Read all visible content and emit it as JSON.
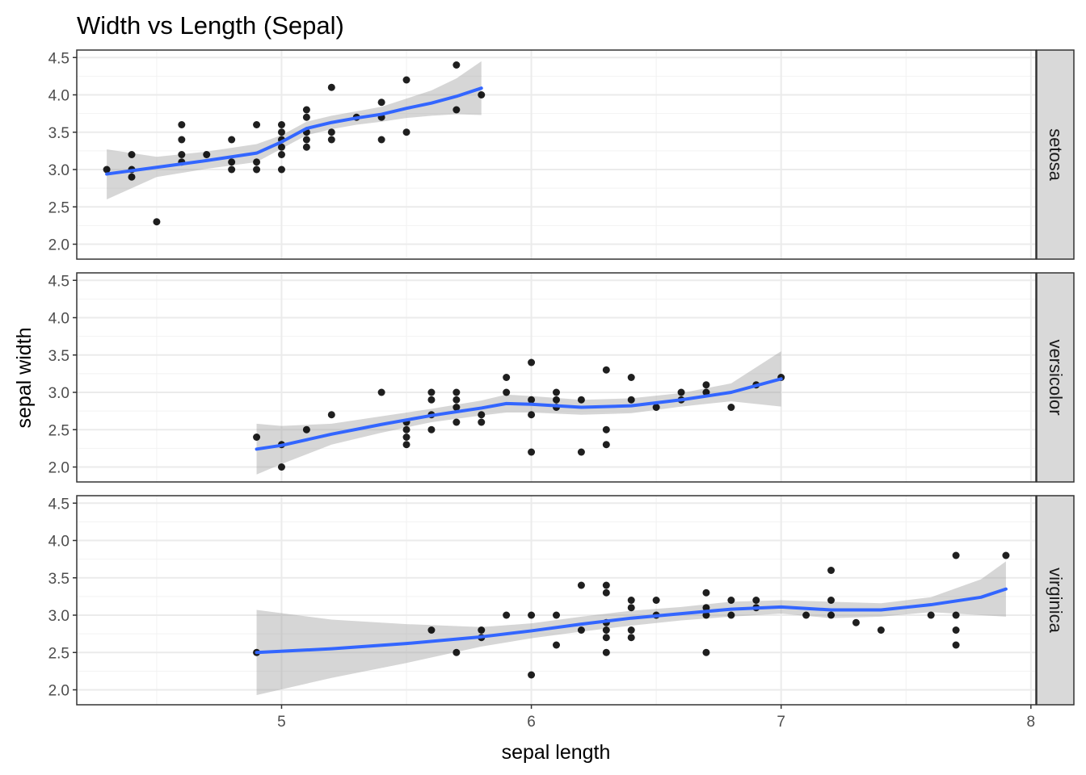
{
  "chart_data": {
    "type": "scatter",
    "title": "Width vs Length (Sepal)",
    "xlabel": "sepal length",
    "ylabel": "sepal width",
    "xlim": [
      4.18,
      8.02
    ],
    "ylim": [
      1.8,
      4.6
    ],
    "x_ticks": [
      5,
      6,
      7,
      8
    ],
    "y_ticks": [
      2.0,
      2.5,
      3.0,
      3.5,
      4.0,
      4.5
    ],
    "grid": true,
    "facet_layout": "rows",
    "smooth_color": "#3366FF",
    "ribbon_color": "#999999",
    "point_color": "#000000",
    "panels": [
      {
        "name": "setosa",
        "points": [
          [
            4.3,
            3.0
          ],
          [
            4.4,
            2.9
          ],
          [
            4.4,
            3.0
          ],
          [
            4.4,
            3.2
          ],
          [
            4.5,
            2.3
          ],
          [
            4.6,
            3.1
          ],
          [
            4.6,
            3.2
          ],
          [
            4.6,
            3.4
          ],
          [
            4.6,
            3.6
          ],
          [
            4.7,
            3.2
          ],
          [
            4.8,
            3.0
          ],
          [
            4.8,
            3.1
          ],
          [
            4.8,
            3.4
          ],
          [
            4.9,
            3.0
          ],
          [
            4.9,
            3.1
          ],
          [
            4.9,
            3.6
          ],
          [
            5.0,
            3.0
          ],
          [
            5.0,
            3.2
          ],
          [
            5.0,
            3.3
          ],
          [
            5.0,
            3.4
          ],
          [
            5.0,
            3.5
          ],
          [
            5.0,
            3.6
          ],
          [
            5.1,
            3.3
          ],
          [
            5.1,
            3.4
          ],
          [
            5.1,
            3.5
          ],
          [
            5.1,
            3.7
          ],
          [
            5.1,
            3.8
          ],
          [
            5.2,
            3.4
          ],
          [
            5.2,
            3.5
          ],
          [
            5.2,
            4.1
          ],
          [
            5.3,
            3.7
          ],
          [
            5.4,
            3.4
          ],
          [
            5.4,
            3.7
          ],
          [
            5.4,
            3.9
          ],
          [
            5.5,
            3.5
          ],
          [
            5.5,
            4.2
          ],
          [
            5.7,
            3.8
          ],
          [
            5.7,
            4.4
          ],
          [
            5.8,
            4.0
          ]
        ],
        "smooth": [
          [
            4.3,
            2.94
          ],
          [
            4.5,
            3.03
          ],
          [
            4.7,
            3.12
          ],
          [
            4.9,
            3.22
          ],
          [
            5.0,
            3.37
          ],
          [
            5.1,
            3.55
          ],
          [
            5.2,
            3.63
          ],
          [
            5.3,
            3.69
          ],
          [
            5.4,
            3.74
          ],
          [
            5.5,
            3.82
          ],
          [
            5.6,
            3.89
          ],
          [
            5.7,
            3.98
          ],
          [
            5.8,
            4.09
          ]
        ],
        "upper": [
          [
            4.3,
            3.27
          ],
          [
            4.5,
            3.17
          ],
          [
            4.7,
            3.24
          ],
          [
            4.9,
            3.34
          ],
          [
            5.0,
            3.46
          ],
          [
            5.1,
            3.64
          ],
          [
            5.2,
            3.72
          ],
          [
            5.3,
            3.78
          ],
          [
            5.4,
            3.84
          ],
          [
            5.5,
            3.95
          ],
          [
            5.6,
            4.06
          ],
          [
            5.7,
            4.22
          ],
          [
            5.8,
            4.45
          ]
        ],
        "lower": [
          [
            4.3,
            2.6
          ],
          [
            4.5,
            2.9
          ],
          [
            4.7,
            3.01
          ],
          [
            4.9,
            3.1
          ],
          [
            5.0,
            3.28
          ],
          [
            5.1,
            3.46
          ],
          [
            5.2,
            3.54
          ],
          [
            5.3,
            3.6
          ],
          [
            5.4,
            3.64
          ],
          [
            5.5,
            3.69
          ],
          [
            5.6,
            3.72
          ],
          [
            5.7,
            3.74
          ],
          [
            5.8,
            3.73
          ]
        ]
      },
      {
        "name": "versicolor",
        "points": [
          [
            4.9,
            2.4
          ],
          [
            5.0,
            2.0
          ],
          [
            5.0,
            2.3
          ],
          [
            5.1,
            2.5
          ],
          [
            5.2,
            2.7
          ],
          [
            5.4,
            3.0
          ],
          [
            5.5,
            2.3
          ],
          [
            5.5,
            2.4
          ],
          [
            5.5,
            2.5
          ],
          [
            5.5,
            2.6
          ],
          [
            5.6,
            2.5
          ],
          [
            5.6,
            2.7
          ],
          [
            5.6,
            2.9
          ],
          [
            5.6,
            3.0
          ],
          [
            5.7,
            2.6
          ],
          [
            5.7,
            2.8
          ],
          [
            5.7,
            2.9
          ],
          [
            5.7,
            3.0
          ],
          [
            5.8,
            2.6
          ],
          [
            5.8,
            2.7
          ],
          [
            5.9,
            3.0
          ],
          [
            5.9,
            3.2
          ],
          [
            6.0,
            2.2
          ],
          [
            6.0,
            2.7
          ],
          [
            6.0,
            2.9
          ],
          [
            6.0,
            3.4
          ],
          [
            6.1,
            2.8
          ],
          [
            6.1,
            2.9
          ],
          [
            6.1,
            3.0
          ],
          [
            6.2,
            2.2
          ],
          [
            6.2,
            2.9
          ],
          [
            6.3,
            2.3
          ],
          [
            6.3,
            2.5
          ],
          [
            6.3,
            3.3
          ],
          [
            6.4,
            2.9
          ],
          [
            6.4,
            3.2
          ],
          [
            6.5,
            2.8
          ],
          [
            6.6,
            2.9
          ],
          [
            6.6,
            3.0
          ],
          [
            6.7,
            3.0
          ],
          [
            6.7,
            3.1
          ],
          [
            6.8,
            2.8
          ],
          [
            6.9,
            3.1
          ],
          [
            7.0,
            3.2
          ]
        ],
        "smooth": [
          [
            4.9,
            2.24
          ],
          [
            5.0,
            2.29
          ],
          [
            5.2,
            2.44
          ],
          [
            5.4,
            2.57
          ],
          [
            5.6,
            2.69
          ],
          [
            5.8,
            2.79
          ],
          [
            5.9,
            2.85
          ],
          [
            6.0,
            2.84
          ],
          [
            6.2,
            2.8
          ],
          [
            6.4,
            2.82
          ],
          [
            6.6,
            2.9
          ],
          [
            6.8,
            3.0
          ],
          [
            7.0,
            3.18
          ]
        ],
        "upper": [
          [
            4.9,
            2.58
          ],
          [
            5.0,
            2.55
          ],
          [
            5.2,
            2.58
          ],
          [
            5.4,
            2.68
          ],
          [
            5.6,
            2.78
          ],
          [
            5.8,
            2.89
          ],
          [
            5.9,
            2.97
          ],
          [
            6.0,
            2.95
          ],
          [
            6.2,
            2.9
          ],
          [
            6.4,
            2.92
          ],
          [
            6.6,
            2.99
          ],
          [
            6.8,
            3.12
          ],
          [
            7.0,
            3.55
          ]
        ],
        "lower": [
          [
            4.9,
            1.9
          ],
          [
            5.0,
            2.04
          ],
          [
            5.2,
            2.3
          ],
          [
            5.4,
            2.46
          ],
          [
            5.6,
            2.6
          ],
          [
            5.8,
            2.69
          ],
          [
            5.9,
            2.73
          ],
          [
            6.0,
            2.73
          ],
          [
            6.2,
            2.7
          ],
          [
            6.4,
            2.72
          ],
          [
            6.6,
            2.81
          ],
          [
            6.8,
            2.88
          ],
          [
            7.0,
            2.81
          ]
        ]
      },
      {
        "name": "virginica",
        "points": [
          [
            4.9,
            2.5
          ],
          [
            5.6,
            2.8
          ],
          [
            5.7,
            2.5
          ],
          [
            5.8,
            2.7
          ],
          [
            5.8,
            2.8
          ],
          [
            5.9,
            3.0
          ],
          [
            6.0,
            2.2
          ],
          [
            6.0,
            3.0
          ],
          [
            6.1,
            2.6
          ],
          [
            6.1,
            3.0
          ],
          [
            6.2,
            2.8
          ],
          [
            6.2,
            3.4
          ],
          [
            6.3,
            2.5
          ],
          [
            6.3,
            2.7
          ],
          [
            6.3,
            2.8
          ],
          [
            6.3,
            2.9
          ],
          [
            6.3,
            3.3
          ],
          [
            6.3,
            3.4
          ],
          [
            6.4,
            2.7
          ],
          [
            6.4,
            2.8
          ],
          [
            6.4,
            3.1
          ],
          [
            6.4,
            3.2
          ],
          [
            6.5,
            3.0
          ],
          [
            6.5,
            3.2
          ],
          [
            6.7,
            2.5
          ],
          [
            6.7,
            3.0
          ],
          [
            6.7,
            3.1
          ],
          [
            6.7,
            3.3
          ],
          [
            6.8,
            3.0
          ],
          [
            6.8,
            3.2
          ],
          [
            6.9,
            3.1
          ],
          [
            6.9,
            3.2
          ],
          [
            7.1,
            3.0
          ],
          [
            7.2,
            3.0
          ],
          [
            7.2,
            3.2
          ],
          [
            7.2,
            3.6
          ],
          [
            7.3,
            2.9
          ],
          [
            7.4,
            2.8
          ],
          [
            7.6,
            3.0
          ],
          [
            7.7,
            2.6
          ],
          [
            7.7,
            2.8
          ],
          [
            7.7,
            3.0
          ],
          [
            7.7,
            3.8
          ],
          [
            7.9,
            3.8
          ]
        ],
        "smooth": [
          [
            4.9,
            2.5
          ],
          [
            5.2,
            2.55
          ],
          [
            5.5,
            2.62
          ],
          [
            5.8,
            2.71
          ],
          [
            6.0,
            2.79
          ],
          [
            6.2,
            2.88
          ],
          [
            6.4,
            2.96
          ],
          [
            6.6,
            3.02
          ],
          [
            6.8,
            3.08
          ],
          [
            7.0,
            3.11
          ],
          [
            7.2,
            3.07
          ],
          [
            7.4,
            3.07
          ],
          [
            7.6,
            3.14
          ],
          [
            7.8,
            3.24
          ],
          [
            7.9,
            3.35
          ]
        ],
        "upper": [
          [
            4.9,
            3.07
          ],
          [
            5.2,
            2.94
          ],
          [
            5.5,
            2.88
          ],
          [
            5.8,
            2.84
          ],
          [
            6.0,
            2.89
          ],
          [
            6.2,
            2.98
          ],
          [
            6.4,
            3.06
          ],
          [
            6.6,
            3.11
          ],
          [
            6.8,
            3.18
          ],
          [
            7.0,
            3.2
          ],
          [
            7.2,
            3.18
          ],
          [
            7.4,
            3.16
          ],
          [
            7.6,
            3.24
          ],
          [
            7.8,
            3.48
          ],
          [
            7.9,
            3.72
          ]
        ],
        "lower": [
          [
            4.9,
            1.93
          ],
          [
            5.2,
            2.16
          ],
          [
            5.5,
            2.36
          ],
          [
            5.8,
            2.58
          ],
          [
            6.0,
            2.69
          ],
          [
            6.2,
            2.78
          ],
          [
            6.4,
            2.86
          ],
          [
            6.6,
            2.93
          ],
          [
            6.8,
            2.98
          ],
          [
            7.0,
            3.02
          ],
          [
            7.2,
            2.96
          ],
          [
            7.4,
            2.98
          ],
          [
            7.6,
            3.04
          ],
          [
            7.8,
            3.0
          ],
          [
            7.9,
            2.98
          ]
        ]
      }
    ]
  }
}
